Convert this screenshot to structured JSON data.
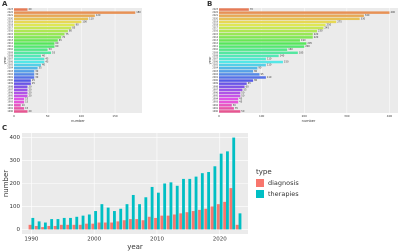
{
  "chart_data": [
    {
      "type": "hbar",
      "panel": "A",
      "xlabel": "number",
      "ylabel": "year",
      "categories": [
        "2023",
        "2022",
        "2021",
        "2020",
        "2019",
        "2018",
        "2017",
        "2016",
        "2015",
        "2014",
        "2013",
        "2012",
        "2011",
        "2010",
        "2009",
        "2008",
        "2007",
        "2006",
        "2005",
        "2004",
        "2003",
        "2002",
        "2001",
        "2000",
        "1999",
        "1998",
        "1997",
        "1996",
        "1995",
        "1994",
        "1993",
        "1992",
        "1991",
        "1990"
      ],
      "values": [
        20,
        180,
        120,
        110,
        100,
        90,
        85,
        80,
        75,
        70,
        65,
        60,
        60,
        50,
        55,
        40,
        45,
        45,
        40,
        35,
        30,
        30,
        30,
        25,
        25,
        20,
        20,
        20,
        20,
        15,
        15,
        10,
        15,
        20
      ],
      "xlim": [
        0,
        190
      ],
      "xticks": [
        0,
        50,
        100,
        150
      ]
    },
    {
      "type": "hbar",
      "panel": "B",
      "xlabel": "number",
      "ylabel": "year",
      "categories": [
        "2023",
        "2022",
        "2021",
        "2020",
        "2019",
        "2018",
        "2017",
        "2016",
        "2015",
        "2014",
        "2013",
        "2012",
        "2011",
        "2010",
        "2009",
        "2008",
        "2007",
        "2006",
        "2005",
        "2004",
        "2003",
        "2002",
        "2001",
        "2000",
        "1999",
        "1998",
        "1997",
        "1996",
        "1995",
        "1994",
        "1993",
        "1992",
        "1991",
        "1990"
      ],
      "values": [
        70,
        400,
        340,
        330,
        275,
        250,
        245,
        230,
        220,
        220,
        190,
        205,
        200,
        160,
        185,
        140,
        110,
        150,
        110,
        90,
        80,
        95,
        110,
        80,
        65,
        60,
        55,
        50,
        50,
        45,
        45,
        30,
        35,
        50
      ],
      "xlim": [
        0,
        420
      ],
      "xticks": [
        0,
        100,
        200,
        300,
        400
      ]
    },
    {
      "type": "grouped_bar",
      "panel": "C",
      "xlabel": "year",
      "ylabel": "number",
      "legend_title": "type",
      "x": [
        1990,
        1991,
        1992,
        1993,
        1994,
        1995,
        1996,
        1997,
        1998,
        1999,
        2000,
        2001,
        2002,
        2003,
        2004,
        2005,
        2006,
        2007,
        2008,
        2009,
        2010,
        2011,
        2012,
        2013,
        2014,
        2015,
        2016,
        2017,
        2018,
        2019,
        2020,
        2021,
        2022,
        2023
      ],
      "series": [
        {
          "name": "diagnosis",
          "color": "#f8766d",
          "values": [
            20,
            15,
            10,
            15,
            15,
            20,
            20,
            20,
            20,
            25,
            25,
            30,
            30,
            30,
            35,
            40,
            45,
            45,
            40,
            55,
            50,
            60,
            60,
            65,
            70,
            75,
            80,
            85,
            90,
            100,
            110,
            120,
            180,
            20
          ]
        },
        {
          "name": "therapies",
          "color": "#00bfc4",
          "values": [
            50,
            35,
            30,
            45,
            45,
            50,
            50,
            55,
            60,
            65,
            80,
            110,
            95,
            80,
            90,
            110,
            150,
            110,
            140,
            185,
            160,
            200,
            205,
            190,
            220,
            220,
            230,
            245,
            250,
            275,
            330,
            340,
            400,
            70
          ]
        }
      ],
      "xlim": [
        1988.5,
        2024.5
      ],
      "xticks": [
        1990,
        2000,
        2010,
        2020
      ],
      "ylim": [
        -20,
        420
      ],
      "yticks": [
        0,
        100,
        200,
        300,
        400
      ]
    }
  ]
}
